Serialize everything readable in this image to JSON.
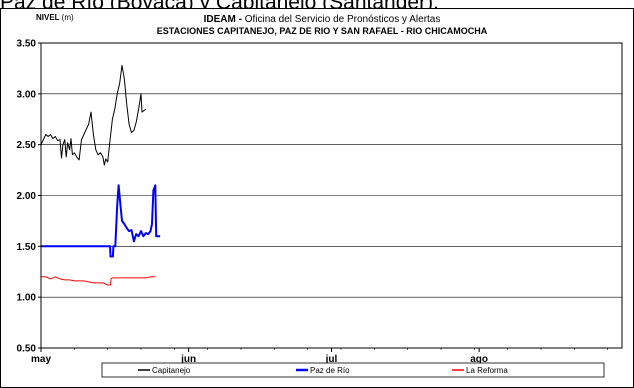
{
  "caption": "Paz de Río (Boyacá) y Capitanejo (Santander).",
  "chart_data": {
    "type": "line",
    "title": {
      "prefix": "IDEAM - ",
      "text": "Oficina del Servicio de Pronósticos y Alertas"
    },
    "subtitle": "ESTACIONES CAPITANEJO, PAZ DE RIO Y SAN RAFAEL -  RIO CHICAMOCHA",
    "ylabel": {
      "name": "NIVEL",
      "unit": "(m)"
    },
    "ylim": [
      0.5,
      3.5
    ],
    "yticks": [
      "0.50",
      "1.00",
      "1.50",
      "2.00",
      "2.50",
      "3.00",
      "3.50"
    ],
    "xlim": [
      0,
      122
    ],
    "xticks": [
      {
        "label": "may",
        "day": 0
      },
      {
        "label": "jun",
        "day": 31
      },
      {
        "label": "jul",
        "day": 61
      },
      {
        "label": "ago",
        "day": 92
      }
    ],
    "grid": "horizontal",
    "legend": "bottom",
    "series": [
      {
        "name": "Capitanejo",
        "color": "#000000",
        "width": 1,
        "points": [
          [
            0,
            2.5
          ],
          [
            0.5,
            2.55
          ],
          [
            1,
            2.6
          ],
          [
            1.5,
            2.58
          ],
          [
            2,
            2.6
          ],
          [
            2.5,
            2.56
          ],
          [
            3,
            2.58
          ],
          [
            3.5,
            2.54
          ],
          [
            4,
            2.55
          ],
          [
            4.3,
            2.37
          ],
          [
            4.6,
            2.5
          ],
          [
            5,
            2.55
          ],
          [
            5.3,
            2.38
          ],
          [
            5.6,
            2.52
          ],
          [
            6,
            2.45
          ],
          [
            6.3,
            2.56
          ],
          [
            6.6,
            2.4
          ],
          [
            7,
            2.42
          ],
          [
            7.5,
            2.38
          ],
          [
            8,
            2.35
          ],
          [
            8.5,
            2.55
          ],
          [
            9,
            2.6
          ],
          [
            9.5,
            2.65
          ],
          [
            10,
            2.7
          ],
          [
            10.5,
            2.82
          ],
          [
            11,
            2.6
          ],
          [
            11.5,
            2.45
          ],
          [
            12,
            2.4
          ],
          [
            12.5,
            2.42
          ],
          [
            13,
            2.38
          ],
          [
            13.3,
            2.3
          ],
          [
            13.6,
            2.36
          ],
          [
            14,
            2.33
          ],
          [
            14.5,
            2.55
          ],
          [
            15,
            2.75
          ],
          [
            15.5,
            2.85
          ],
          [
            16,
            3.0
          ],
          [
            16.5,
            3.1
          ],
          [
            17,
            3.28
          ],
          [
            17.5,
            3.15
          ],
          [
            18,
            2.9
          ],
          [
            18.5,
            2.7
          ],
          [
            19,
            2.62
          ],
          [
            19.5,
            2.64
          ],
          [
            20,
            2.72
          ],
          [
            20.5,
            2.85
          ],
          [
            21,
            3.0
          ],
          [
            21.2,
            2.82
          ],
          [
            22,
            2.85
          ]
        ]
      },
      {
        "name": "Paz de Río",
        "color": "#0000ff",
        "width": 2,
        "points": [
          [
            0,
            1.5
          ],
          [
            14.5,
            1.5
          ],
          [
            14.6,
            1.4
          ],
          [
            15.1,
            1.4
          ],
          [
            15.2,
            1.5
          ],
          [
            15.6,
            1.5
          ],
          [
            16,
            1.9
          ],
          [
            16.3,
            2.1
          ],
          [
            16.7,
            1.9
          ],
          [
            17,
            1.75
          ],
          [
            17.5,
            1.72
          ],
          [
            18,
            1.68
          ],
          [
            18.5,
            1.65
          ],
          [
            19,
            1.66
          ],
          [
            19.5,
            1.55
          ],
          [
            20,
            1.62
          ],
          [
            20.5,
            1.6
          ],
          [
            21,
            1.65
          ],
          [
            21.5,
            1.6
          ],
          [
            22,
            1.63
          ],
          [
            22.5,
            1.62
          ],
          [
            23,
            1.65
          ],
          [
            23.3,
            1.72
          ],
          [
            23.6,
            2.05
          ],
          [
            24,
            2.1
          ],
          [
            24.2,
            1.6
          ],
          [
            25,
            1.6
          ]
        ]
      },
      {
        "name": "La Reforma",
        "color": "#ff0000",
        "width": 1,
        "points": [
          [
            0,
            1.2
          ],
          [
            1,
            1.2
          ],
          [
            2,
            1.18
          ],
          [
            3,
            1.2
          ],
          [
            4,
            1.18
          ],
          [
            5,
            1.17
          ],
          [
            6,
            1.17
          ],
          [
            7,
            1.16
          ],
          [
            8,
            1.16
          ],
          [
            9,
            1.16
          ],
          [
            10,
            1.15
          ],
          [
            11,
            1.14
          ],
          [
            12,
            1.14
          ],
          [
            13,
            1.14
          ],
          [
            14,
            1.12
          ],
          [
            14.6,
            1.12
          ],
          [
            14.7,
            1.18
          ],
          [
            15,
            1.19
          ],
          [
            16,
            1.19
          ],
          [
            18,
            1.19
          ],
          [
            20,
            1.19
          ],
          [
            22,
            1.19
          ],
          [
            23,
            1.2
          ],
          [
            24,
            1.2
          ]
        ]
      }
    ]
  }
}
